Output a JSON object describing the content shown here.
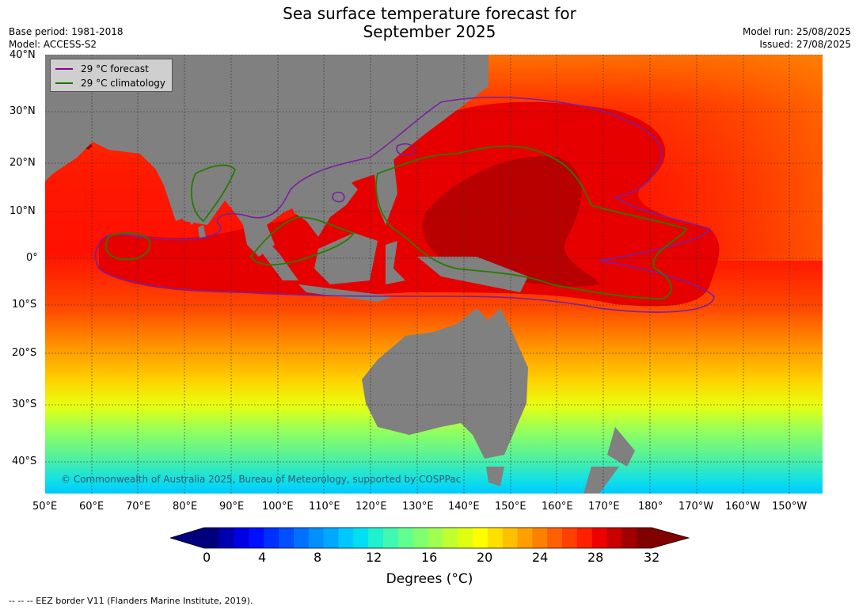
{
  "title_line1": "Sea surface temperature forecast for",
  "title_line2": "September 2025",
  "base_period": "Base period: 1981-2018",
  "model": "Model: ACCESS-S2",
  "model_run": "Model run: 25/08/2025",
  "issued": "Issued: 27/08/2025",
  "legend": {
    "forecast_label": "29 °C  forecast",
    "forecast_color": "#8b008b",
    "climatology_label": "29 °C  climatology",
    "climatology_color": "#1a7a00"
  },
  "lat_ticks": [
    "40°N",
    "30°N",
    "20°N",
    "10°N",
    "0°",
    "10°S",
    "20°S",
    "30°S",
    "40°S"
  ],
  "lon_ticks": [
    "50°E",
    "60°E",
    "70°E",
    "80°E",
    "90°E",
    "100°E",
    "110°E",
    "120°E",
    "130°E",
    "140°E",
    "150°E",
    "160°E",
    "170°E",
    "180°",
    "170°W",
    "160°W",
    "150°W"
  ],
  "copyright": "© Commonwealth of Australia 2025, Bureau of Meteorology, supported by COSPPac",
  "colorbar": {
    "ticks": [
      "0",
      "4",
      "8",
      "12",
      "16",
      "20",
      "24",
      "28",
      "32"
    ],
    "label": "Degrees (°C)",
    "colors": [
      "#00007f",
      "#0000b2",
      "#0000e5",
      "#0010ff",
      "#0030ff",
      "#0050ff",
      "#0070ff",
      "#0090ff",
      "#00a8ff",
      "#00c8ff",
      "#00e0f0",
      "#20f0d0",
      "#40f8b0",
      "#60ff90",
      "#80ff70",
      "#a0ff50",
      "#c0ff30",
      "#e0ff10",
      "#ffff00",
      "#ffe000",
      "#ffc000",
      "#ffa000",
      "#ff8000",
      "#ff6000",
      "#ff4000",
      "#ff2000",
      "#ee0000",
      "#c80000",
      "#a00000",
      "#800000"
    ]
  },
  "footnote": "--  --  -- EEZ border V11 (Flanders Marine Institute, 2019)."
}
